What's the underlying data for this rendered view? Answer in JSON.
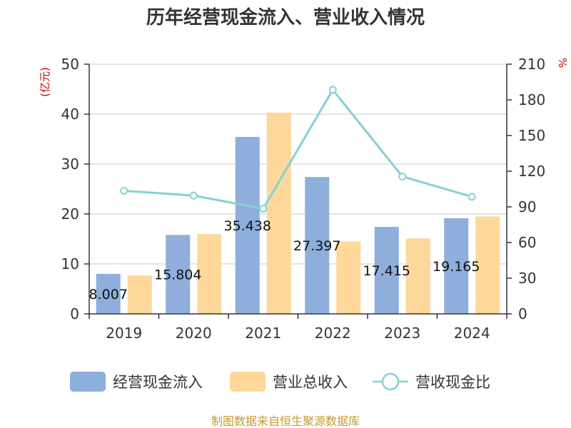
{
  "chart_data": {
    "type": "bar",
    "title": "历年经营现金流入、营业收入情况",
    "categories": [
      "2019",
      "2020",
      "2021",
      "2022",
      "2023",
      "2024"
    ],
    "series": [
      {
        "name": "经营现金流入",
        "kind": "bar",
        "axis": "left",
        "color": "#8eaedb",
        "values": [
          8.007,
          15.804,
          35.438,
          27.397,
          17.415,
          19.165
        ],
        "labels": [
          "8.007",
          "15.804",
          "35.438",
          "27.397",
          "17.415",
          "19.165"
        ]
      },
      {
        "name": "营业总收入",
        "kind": "bar",
        "axis": "left",
        "color": "#fdd89a",
        "values": [
          7.7,
          16.0,
          40.3,
          14.5,
          15.1,
          19.5
        ]
      },
      {
        "name": "营收现金比",
        "kind": "line",
        "axis": "right",
        "color": "#86d1d5",
        "values": [
          103.5,
          99.5,
          88.5,
          188.5,
          115.5,
          98.5
        ]
      }
    ],
    "y_left": {
      "label": "(亿元)",
      "min": 0,
      "max": 50,
      "ticks": [
        0,
        10,
        20,
        30,
        40,
        50
      ]
    },
    "y_right": {
      "label": "%",
      "min": 0,
      "max": 210,
      "ticks": [
        0,
        30,
        60,
        90,
        120,
        150,
        180,
        210
      ]
    },
    "grid": true,
    "legend_position": "bottom",
    "colors": {
      "axis_unit": "#cc0000",
      "source": "#c49a2c",
      "grid": "#c8c8c8",
      "axis": "#333333"
    }
  },
  "source": "制图数据来自恒生聚源数据库"
}
